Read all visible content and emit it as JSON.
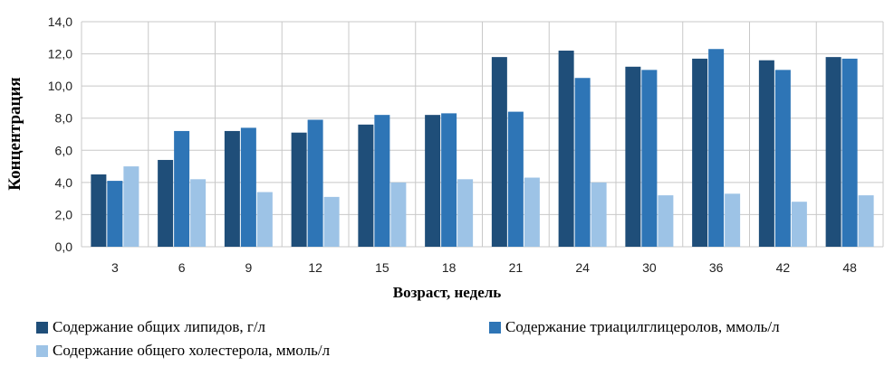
{
  "chart_data": {
    "type": "bar",
    "categories": [
      "3",
      "6",
      "9",
      "12",
      "15",
      "18",
      "21",
      "24",
      "30",
      "36",
      "42",
      "48"
    ],
    "series": [
      {
        "name": "Содержание общих липидов, г/л",
        "color": "#1f4e79",
        "values": [
          4.5,
          5.4,
          7.2,
          7.1,
          7.6,
          8.2,
          11.8,
          12.2,
          11.2,
          11.7,
          11.6,
          11.8
        ]
      },
      {
        "name": "Содержание триацилглицеролов, ммоль/л",
        "color": "#2e75b6",
        "values": [
          4.1,
          7.2,
          7.4,
          7.9,
          8.2,
          8.3,
          8.4,
          10.5,
          11.0,
          12.3,
          11.0,
          11.7
        ]
      },
      {
        "name": "Содержание общего холестерола, ммоль/л",
        "color": "#9dc3e6",
        "values": [
          5.0,
          4.2,
          3.4,
          3.1,
          4.0,
          4.2,
          4.3,
          4.0,
          3.2,
          3.3,
          2.8,
          3.2
        ]
      }
    ],
    "yticks": [
      "0,0",
      "2,0",
      "4,0",
      "6,0",
      "8,0",
      "10,0",
      "12,0",
      "14,0"
    ],
    "ylim": [
      0,
      14
    ],
    "xlabel": "Возраст, недель",
    "ylabel": "Концентрация",
    "grid": true,
    "legend_position": "bottom"
  }
}
